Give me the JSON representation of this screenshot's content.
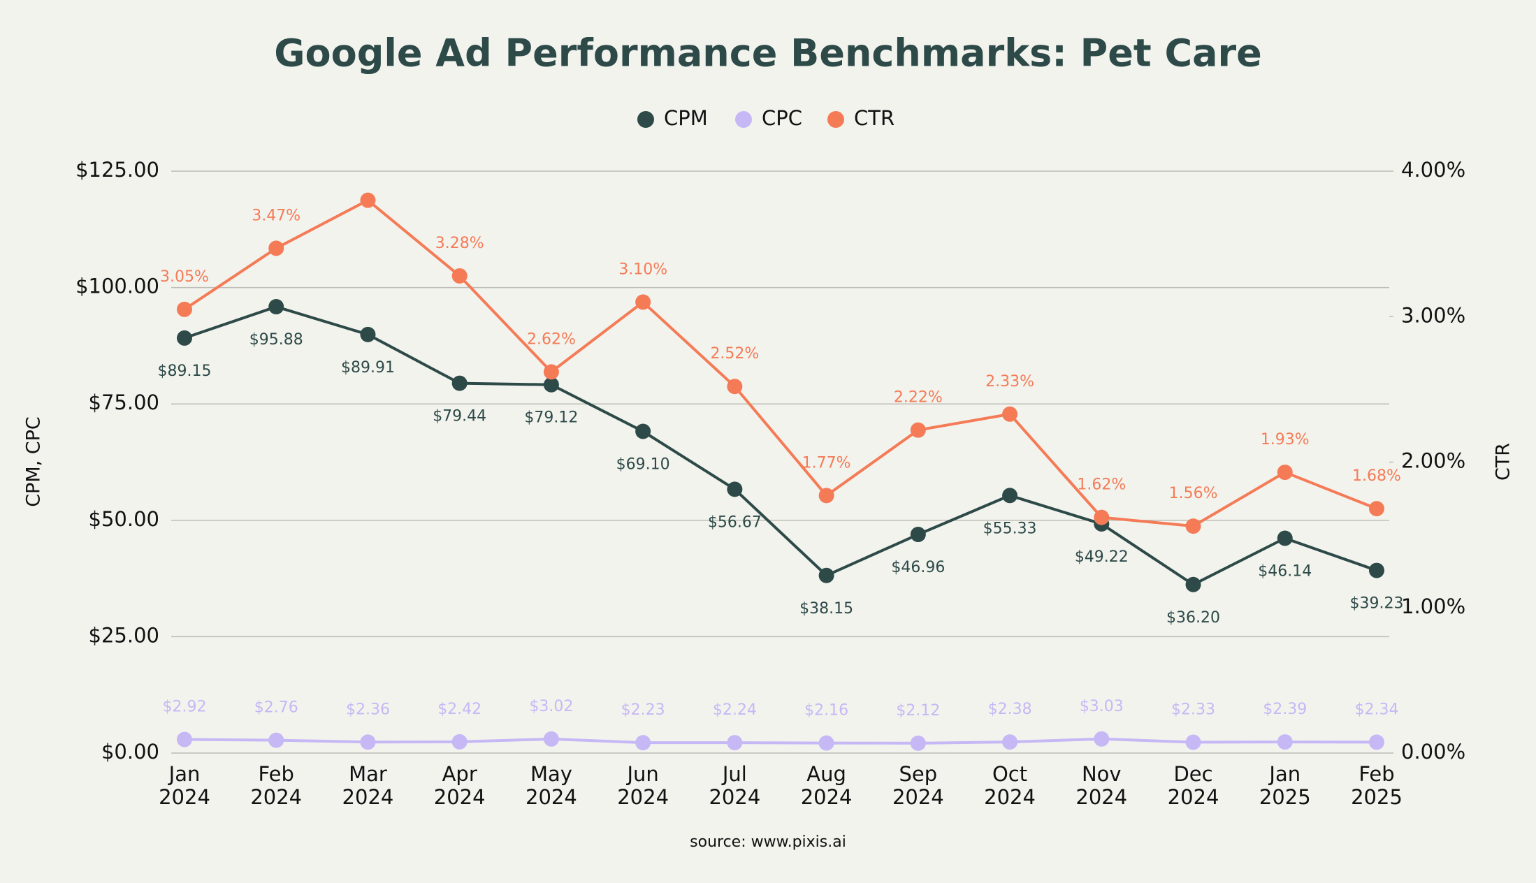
{
  "chart_data": {
    "type": "line",
    "title": "Google Ad Performance Benchmarks: Pet Care",
    "categories": [
      "Jan 2024",
      "Feb 2024",
      "Mar 2024",
      "Apr 2024",
      "May 2024",
      "Jun 2024",
      "Jul 2024",
      "Aug 2024",
      "Sep 2024",
      "Oct 2024",
      "Nov 2024",
      "Dec 2024",
      "Jan 2025",
      "Feb 2025"
    ],
    "series": [
      {
        "name": "CPM",
        "color": "#2d4a48",
        "axis": "y",
        "values": [
          89.15,
          95.88,
          89.91,
          79.44,
          79.12,
          69.1,
          56.67,
          38.15,
          46.96,
          55.33,
          49.22,
          36.2,
          46.14,
          39.23
        ],
        "value_labels": [
          "$89.15",
          "$95.88",
          "$89.91",
          "$79.44",
          "$79.12",
          "$69.10",
          "$56.67",
          "$38.15",
          "$46.96",
          "$55.33",
          "$49.22",
          "$36.20",
          "$46.14",
          "$39.23"
        ]
      },
      {
        "name": "CPC",
        "color": "#c5b8f5",
        "axis": "y",
        "values": [
          2.92,
          2.76,
          2.36,
          2.42,
          3.02,
          2.23,
          2.24,
          2.16,
          2.12,
          2.38,
          3.03,
          2.33,
          2.39,
          2.34
        ],
        "value_labels": [
          "$2.92",
          "$2.76",
          "$2.36",
          "$2.42",
          "$3.02",
          "$2.23",
          "$2.24",
          "$2.16",
          "$2.12",
          "$2.38",
          "$3.03",
          "$2.33",
          "$2.39",
          "$2.34"
        ]
      },
      {
        "name": "CTR",
        "color": "#f47b56",
        "axis": "y2",
        "values": [
          3.05,
          3.47,
          3.8,
          3.28,
          2.62,
          3.1,
          2.52,
          1.77,
          2.22,
          2.33,
          1.62,
          1.56,
          1.93,
          1.68
        ],
        "value_labels": [
          "3.05%",
          "3.47%",
          null,
          "3.28%",
          "2.62%",
          "3.10%",
          "2.52%",
          "1.77%",
          "2.22%",
          "2.33%",
          "1.62%",
          "1.56%",
          "1.93%",
          "1.68%"
        ]
      }
    ],
    "ylabel": "CPM, CPC",
    "y2label": "CTR",
    "ylim": [
      0,
      125
    ],
    "yticks": [
      {
        "value": 0,
        "label": "$0.00"
      },
      {
        "value": 25,
        "label": "$25.00"
      },
      {
        "value": 50,
        "label": "$50.00"
      },
      {
        "value": 75,
        "label": "$75.00"
      },
      {
        "value": 100,
        "label": "$100.00"
      },
      {
        "value": 125,
        "label": "$125.00"
      }
    ],
    "y2lim": [
      0,
      4
    ],
    "y2ticks": [
      {
        "value": 0,
        "label": "0.00%"
      },
      {
        "value": 1,
        "label": "1.00%"
      },
      {
        "value": 2,
        "label": "2.00%"
      },
      {
        "value": 3,
        "label": "3.00%"
      },
      {
        "value": 4,
        "label": "4.00%"
      }
    ],
    "grid": true,
    "legend": "top",
    "source": "source: www.pixis.ai"
  }
}
